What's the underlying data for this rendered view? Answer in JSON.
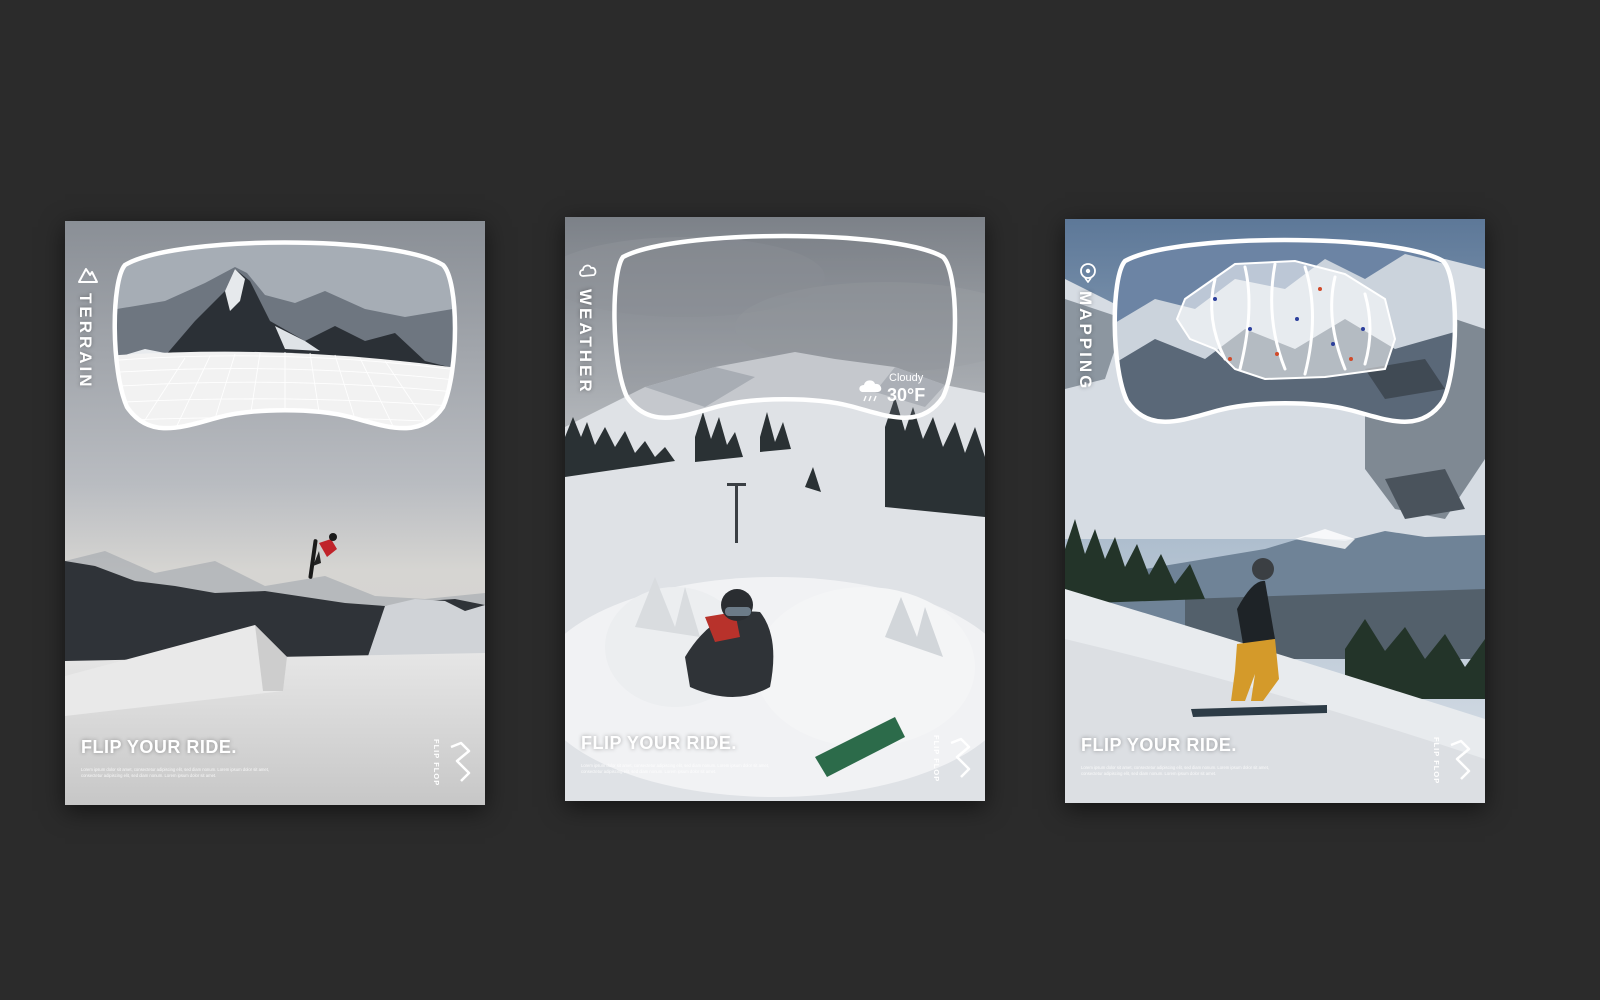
{
  "colors": {
    "background": "#2b2b2b",
    "overlay": "#ffffff"
  },
  "posters": [
    {
      "label": "TERRAIN",
      "icon": "mountain-icon",
      "tagline": "FLIP YOUR RIDE.",
      "body_copy": "Lorem ipsum dolor sit amet, consectetur adipiscing elit, sed diam nonum. Lorem ipsum dolor sit amet, consectetur adipiscing elit, sed diam nonum. Lorem ipsum dolor sit amet.",
      "brand": "FLIP FLOP"
    },
    {
      "label": "WEATHER",
      "icon": "cloud-icon",
      "tagline": "FLIP YOUR RIDE.",
      "body_copy": "Lorem ipsum dolor sit amet, consectetur adipiscing elit, sed diam nonum. Lorem ipsum dolor sit amet, consectetur adipiscing elit, sed diam nonum. Lorem ipsum dolor sit amet.",
      "brand": "FLIP FLOP",
      "weather": {
        "condition": "Cloudy",
        "temp": "30°F",
        "icon": "cloud-snow-icon"
      }
    },
    {
      "label": "MAPPING",
      "icon": "map-pin-icon",
      "tagline": "FLIP YOUR RIDE.",
      "body_copy": "Lorem ipsum dolor sit amet, consectetur adipiscing elit, sed diam nonum. Lorem ipsum dolor sit amet, consectetur adipiscing elit, sed diam nonum. Lorem ipsum dolor sit amet.",
      "brand": "FLIP FLOP"
    }
  ]
}
